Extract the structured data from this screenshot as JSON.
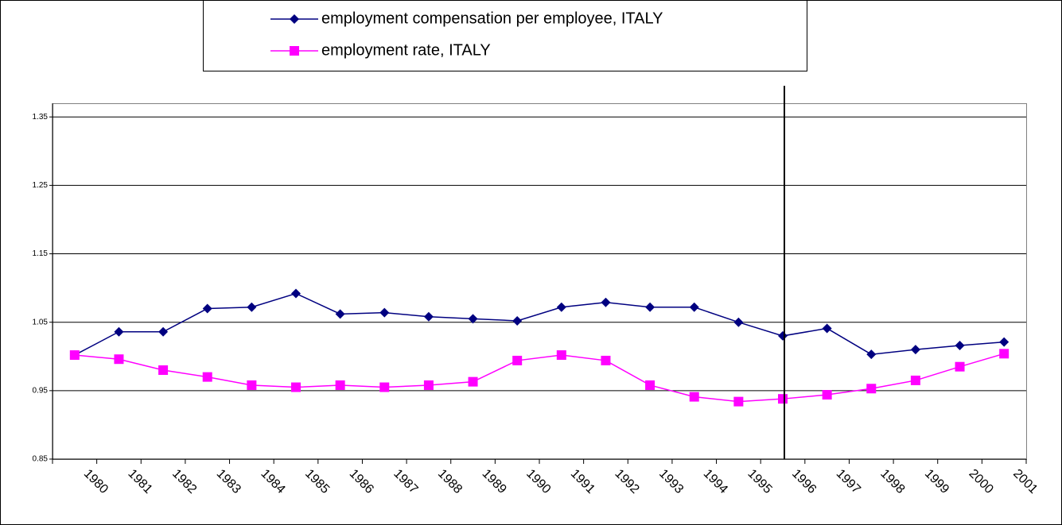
{
  "chart_data": {
    "type": "line",
    "categories": [
      "1980",
      "1981",
      "1982",
      "1983",
      "1984",
      "1985",
      "1986",
      "1987",
      "1988",
      "1989",
      "1990",
      "1991",
      "1992",
      "1993",
      "1994",
      "1995",
      "1996",
      "1997",
      "1998",
      "1999",
      "2000",
      "2001"
    ],
    "series": [
      {
        "name": "employment compensation per employee, ITALY",
        "color": "#000080",
        "marker": "diamond",
        "values": [
          1.002,
          1.036,
          1.036,
          1.07,
          1.072,
          1.092,
          1.062,
          1.064,
          1.058,
          1.055,
          1.052,
          1.072,
          1.079,
          1.072,
          1.072,
          1.05,
          1.03,
          1.041,
          1.003,
          1.01,
          1.016,
          1.021
        ]
      },
      {
        "name": "employment rate, ITALY",
        "color": "#ff00ff",
        "marker": "square",
        "values": [
          1.002,
          0.996,
          0.98,
          0.97,
          0.958,
          0.955,
          0.958,
          0.955,
          0.958,
          0.963,
          0.994,
          1.002,
          0.994,
          0.958,
          0.941,
          0.934,
          0.938,
          0.944,
          0.953,
          0.965,
          0.985,
          1.004
        ]
      }
    ],
    "ylim": [
      0.85,
      1.37
    ],
    "yticks": [
      0.85,
      0.95,
      1.05,
      1.15,
      1.25,
      1.35
    ],
    "grid": true
  }
}
